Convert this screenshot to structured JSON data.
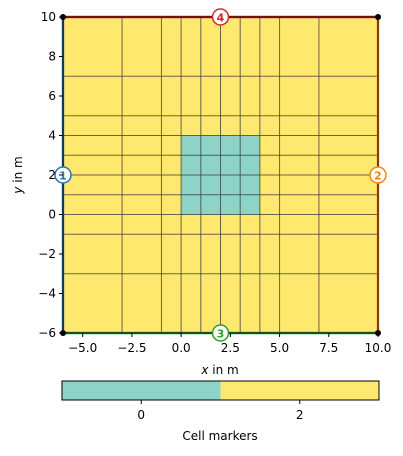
{
  "chart_data": {
    "type": "heatmap",
    "title": "",
    "xlabel_var": "x",
    "xlabel_rest": " in m",
    "ylabel_var": "y",
    "ylabel_rest": " in m",
    "xlim": [
      -6,
      10
    ],
    "ylim": [
      -6,
      10
    ],
    "xticks": [
      -5.0,
      -2.5,
      0.0,
      2.5,
      5.0,
      7.5,
      10.0
    ],
    "xtick_labels": [
      "−5.0",
      "−2.5",
      "0.0",
      "2.5",
      "5.0",
      "7.5",
      "10.0"
    ],
    "yticks": [
      -6,
      -4,
      -2,
      0,
      2,
      4,
      6,
      8,
      10
    ],
    "ytick_labels": [
      "−6",
      "−4",
      "−2",
      "0",
      "2",
      "4",
      "6",
      "8",
      "10"
    ],
    "x_grid_nodes": [
      -6,
      -3,
      -1,
      0,
      1,
      2,
      3,
      4,
      5,
      7,
      10
    ],
    "y_grid_nodes": [
      -6,
      -3,
      -1,
      0,
      1,
      2,
      3,
      4,
      5,
      7,
      10
    ],
    "regions": [
      {
        "marker": 2,
        "x": [
          -6,
          10
        ],
        "y": [
          -6,
          10
        ],
        "color": "#ffe86e"
      },
      {
        "marker": 0,
        "x": [
          0,
          4
        ],
        "y": [
          0,
          4
        ],
        "color": "#8dd3c7"
      }
    ],
    "boundaries": [
      {
        "marker": 1,
        "side": "left",
        "label_x": -6,
        "label_y": 2,
        "color": "#1f77b4"
      },
      {
        "marker": 2,
        "side": "right",
        "label_x": 10,
        "label_y": 2,
        "color": "#ff7f0e"
      },
      {
        "marker": 3,
        "side": "bottom",
        "label_x": 2,
        "label_y": -6,
        "color": "#2ca02c"
      },
      {
        "marker": 4,
        "side": "top",
        "label_x": 2,
        "label_y": 10,
        "color": "#d62728"
      }
    ],
    "corner_nodes": [
      [
        -6,
        -6
      ],
      [
        10,
        -6
      ],
      [
        10,
        10
      ],
      [
        -6,
        10
      ]
    ],
    "colorbar": {
      "label": "Cell markers",
      "range": [
        -1,
        3
      ],
      "segments": [
        {
          "from": -1,
          "to": 1,
          "color": "#8dd3c7"
        },
        {
          "from": 1,
          "to": 3,
          "color": "#ffe86e"
        }
      ],
      "ticks": [
        0,
        2
      ],
      "tick_labels": [
        "0",
        "2"
      ]
    }
  }
}
